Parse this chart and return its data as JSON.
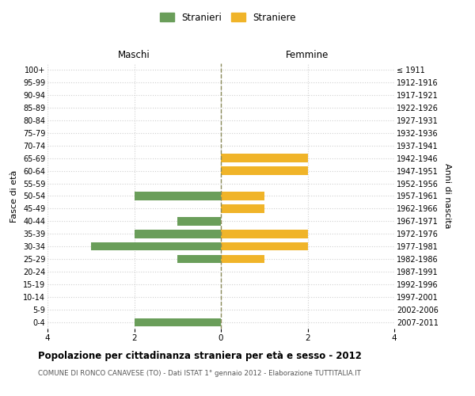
{
  "age_groups": [
    "100+",
    "95-99",
    "90-94",
    "85-89",
    "80-84",
    "75-79",
    "70-74",
    "65-69",
    "60-64",
    "55-59",
    "50-54",
    "45-49",
    "40-44",
    "35-39",
    "30-34",
    "25-29",
    "20-24",
    "15-19",
    "10-14",
    "5-9",
    "0-4"
  ],
  "birth_years": [
    "≤ 1911",
    "1912-1916",
    "1917-1921",
    "1922-1926",
    "1927-1931",
    "1932-1936",
    "1937-1941",
    "1942-1946",
    "1947-1951",
    "1952-1956",
    "1957-1961",
    "1962-1966",
    "1967-1971",
    "1972-1976",
    "1977-1981",
    "1982-1986",
    "1987-1991",
    "1992-1996",
    "1997-2001",
    "2002-2006",
    "2007-2011"
  ],
  "maschi": [
    0,
    0,
    0,
    0,
    0,
    0,
    0,
    0,
    0,
    0,
    2,
    0,
    1,
    2,
    3,
    1,
    0,
    0,
    0,
    0,
    2
  ],
  "femmine": [
    0,
    0,
    0,
    0,
    0,
    0,
    0,
    2,
    2,
    0,
    1,
    1,
    0,
    2,
    2,
    1,
    0,
    0,
    0,
    0,
    0
  ],
  "maschi_color": "#6a9e5a",
  "femmine_color": "#f0b429",
  "center_line_color": "#8b8b5a",
  "grid_color": "#d0d0d0",
  "background_color": "#ffffff",
  "title": "Popolazione per cittadinanza straniera per età e sesso - 2012",
  "subtitle": "COMUNE DI RONCO CANAVESE (TO) - Dati ISTAT 1° gennaio 2012 - Elaborazione TUTTITALIA.IT",
  "ylabel_left": "Fasce di età",
  "ylabel_right": "Anni di nascita",
  "xlabel_maschi": "Maschi",
  "xlabel_femmine": "Femmine",
  "legend_maschi": "Stranieri",
  "legend_femmine": "Straniere",
  "xlim": 4,
  "bar_height": 0.65,
  "xticks": [
    -4,
    -2,
    0,
    2,
    4
  ],
  "xtick_labels": [
    "4",
    "2",
    "0",
    "2",
    "4"
  ]
}
